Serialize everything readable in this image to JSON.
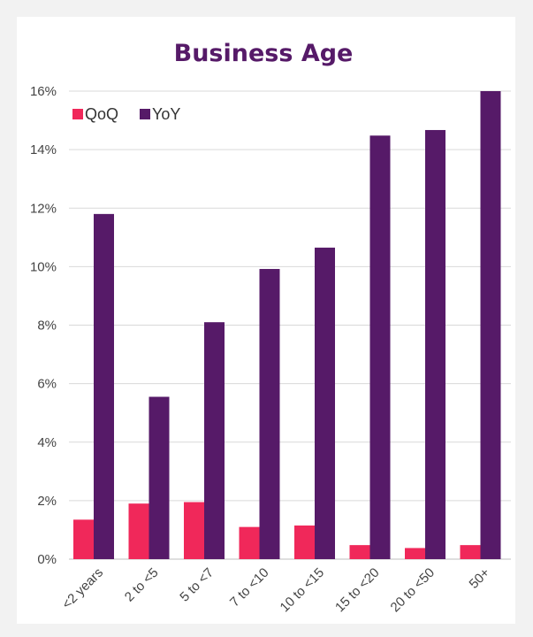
{
  "chart_data": {
    "type": "bar",
    "title": "Business Age",
    "xlabel": "",
    "ylabel": "",
    "categories": [
      "<2 years",
      "2 to <5",
      "5 to <7",
      "7 to <10",
      "10 to <15",
      "15 to <20",
      "20 to <50",
      "50+"
    ],
    "series": [
      {
        "name": "QoQ",
        "color": "#f0285a",
        "values": [
          1.35,
          1.9,
          1.95,
          1.1,
          1.15,
          0.48,
          0.38,
          0.48
        ]
      },
      {
        "name": "YoY",
        "color": "#561a68",
        "values": [
          11.8,
          5.55,
          8.1,
          9.92,
          10.65,
          14.48,
          14.67,
          16.0
        ]
      }
    ],
    "ylim": [
      0,
      16
    ],
    "yticks": [
      "0%",
      "2%",
      "4%",
      "6%",
      "8%",
      "10%",
      "12%",
      "14%",
      "16%"
    ],
    "ytick_values": [
      0,
      2,
      4,
      6,
      8,
      10,
      12,
      14,
      16
    ],
    "grid": true,
    "legend_position": "top-left",
    "title_color": "#561a68",
    "grid_color": "#d9d9d9",
    "axis_color": "#bfbfbf"
  }
}
